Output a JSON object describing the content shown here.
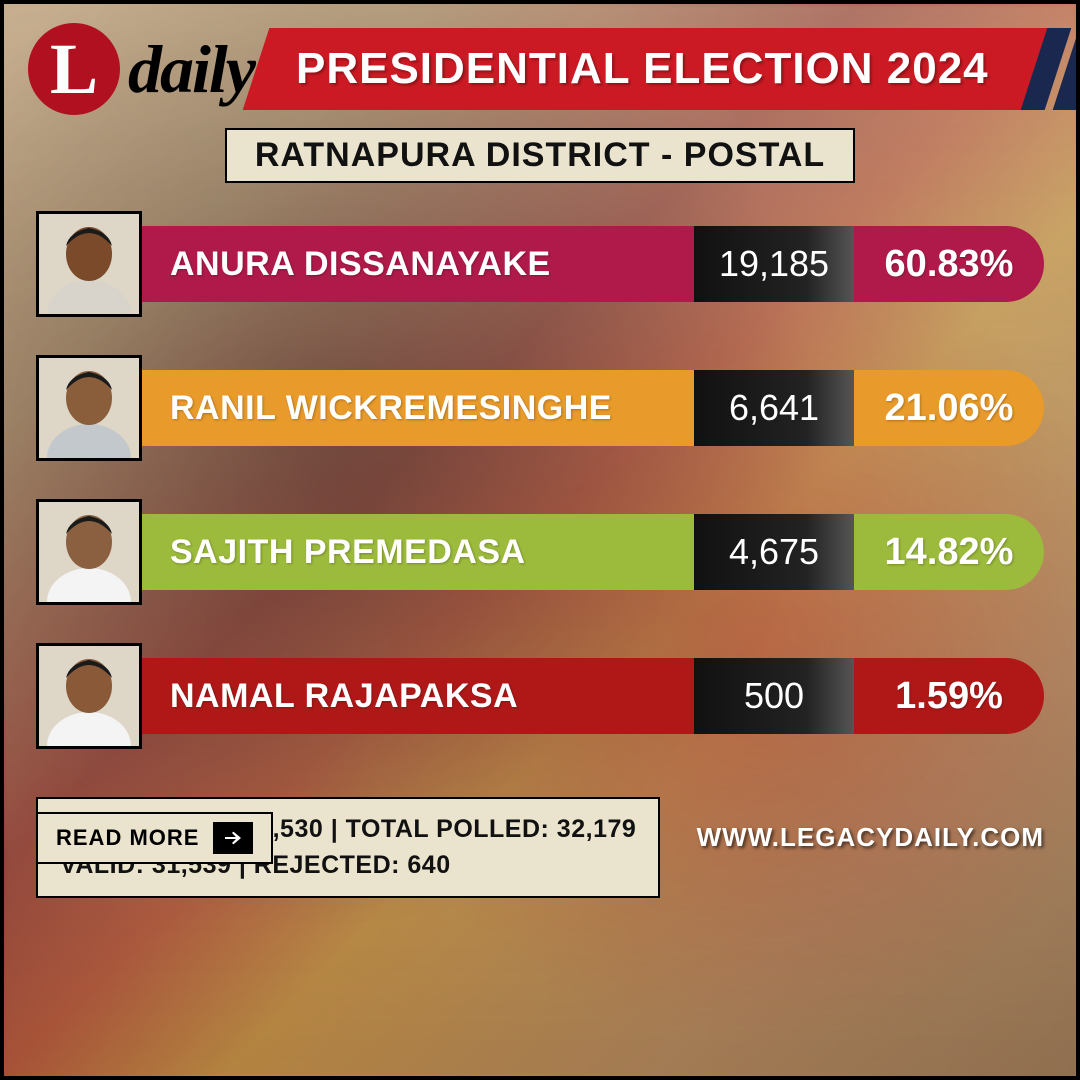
{
  "logo": {
    "letter": "L",
    "word": "daily",
    "circle_bg": "#b01020"
  },
  "header": {
    "title": "PRESIDENTIAL ELECTION 2024",
    "banner_color": "#cc1a24",
    "stripe_color": "#1a2850"
  },
  "subtitle": "RATNAPURA DISTRICT - POSTAL",
  "subtitle_bg": "#eae3ce",
  "candidates": [
    {
      "name": "ANURA DISSANAYAKE",
      "votes": "19,185",
      "pct": "60.83%",
      "bar_color": "#b01a4a",
      "skin": "#7a4a2a",
      "shirt": "#d8d4cc"
    },
    {
      "name": "RANIL WICKREMESINGHE",
      "votes": "6,641",
      "pct": "21.06%",
      "bar_color": "#e89a2a",
      "skin": "#8a5e3a",
      "shirt": "#c2c8cc"
    },
    {
      "name": "SAJITH PREMEDASA",
      "votes": "4,675",
      "pct": "14.82%",
      "bar_color": "#9cba3c",
      "skin": "#8a6040",
      "shirt": "#f4f4f4"
    },
    {
      "name": "NAMAL RAJAPAKSA",
      "votes": "500",
      "pct": "1.59%",
      "bar_color": "#b01818",
      "skin": "#8a5a38",
      "shirt": "#f4f4f4"
    }
  ],
  "name_font_size": 34,
  "votes_font_size": 36,
  "pct_font_size": 38,
  "stats": {
    "line1": "REGISTERED: 32,530 | TOTAL POLLED: 32,179",
    "line2": "VALID: 31,539 | REJECTED: 640",
    "bg": "#eae3ce"
  },
  "footer": {
    "readmore": "READ MORE",
    "url": "WWW.LEGACYDAILY.COM"
  },
  "votes_box_gradient": "linear-gradient(to right,#111 0%,#222 70%,#555 100%)"
}
